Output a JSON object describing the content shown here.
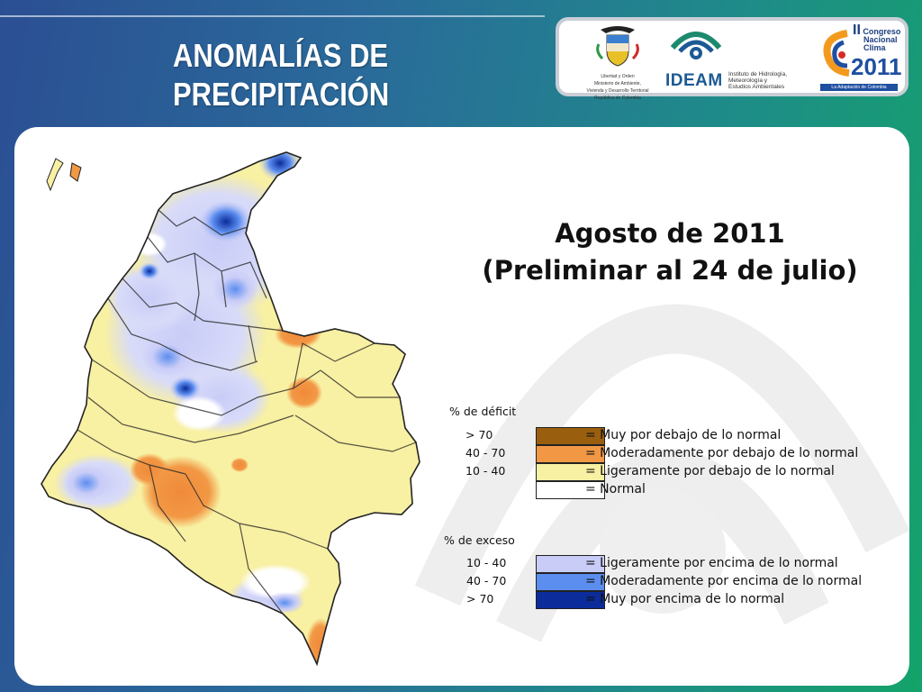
{
  "slide": {
    "title_line1": "ANOMALÍAS DE",
    "title_line2": "PRECIPITACIÓN"
  },
  "logos": {
    "colombia": {
      "caption_line1": "Libertad y Orden",
      "caption_line2": "Ministerio de Ambiente,",
      "caption_line3": "Vivienda y Desarrollo Territorial",
      "caption_line4": "República de Colombia"
    },
    "ideam": {
      "name": "IDEAM",
      "sub_line1": "Instituto de Hidrología,",
      "sub_line2": "Meteorología y",
      "sub_line3": "Estudios Ambientales"
    },
    "congreso": {
      "numeral": "II",
      "line1": "Congreso",
      "line2": "Nacional",
      "line3": "Clima",
      "year": "2011",
      "tagline": "La Adaptación de Colombia"
    }
  },
  "map": {
    "title_line1": "Agosto de 2011",
    "title_line2": "(Preliminar al 24 de julio)"
  },
  "legend": {
    "deficit": {
      "title": "% de déficit",
      "items": [
        {
          "range": "> 70",
          "color": "#9a5f0e",
          "label": "= Muy por debajo de lo normal"
        },
        {
          "range": "40 -  70",
          "color": "#f29845",
          "label": "= Moderadamente por debajo de lo normal"
        },
        {
          "range": "10 -  40",
          "color": "#f8f0a2",
          "label": "= Ligeramente por debajo de lo normal"
        },
        {
          "range": "",
          "color": "#ffffff",
          "label": "= Normal"
        }
      ]
    },
    "excess": {
      "title": "% de exceso",
      "items": [
        {
          "range": "10 -  40",
          "color": "#c9ccf7",
          "label": "= Ligeramente por encima de lo normal"
        },
        {
          "range": "40 -  70",
          "color": "#5c8ef0",
          "label": "= Moderadamente por encima de lo normal"
        },
        {
          "range": "> 70",
          "color": "#0b2c9a",
          "label": "= Muy por encima de lo normal"
        }
      ]
    }
  }
}
